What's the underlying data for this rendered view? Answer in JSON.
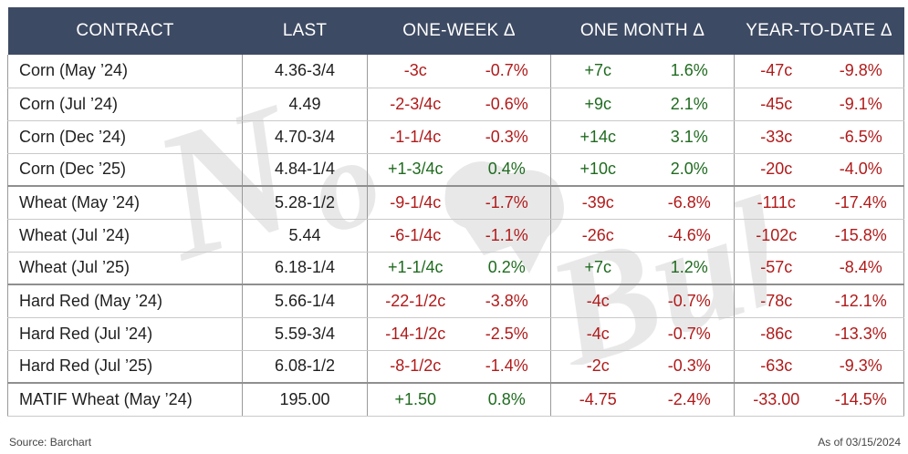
{
  "headers": [
    "CONTRACT",
    "LAST",
    "ONE-WEEK Δ",
    "ONE MONTH Δ",
    "YEAR-TO-DATE Δ"
  ],
  "rows": [
    {
      "contract": "Corn (May ’24)",
      "last": "4.36-3/4",
      "wk_chg": "-3c",
      "wk_pct": "-0.7%",
      "mo_chg": "+7c",
      "mo_pct": "1.6%",
      "ytd_chg": "-47c",
      "ytd_pct": "-9.8%"
    },
    {
      "contract": "Corn (Jul ’24)",
      "last": "4.49",
      "wk_chg": "-2-3/4c",
      "wk_pct": "-0.6%",
      "mo_chg": "+9c",
      "mo_pct": "2.1%",
      "ytd_chg": "-45c",
      "ytd_pct": "-9.1%"
    },
    {
      "contract": "Corn (Dec ’24)",
      "last": "4.70-3/4",
      "wk_chg": "-1-1/4c",
      "wk_pct": "-0.3%",
      "mo_chg": "+14c",
      "mo_pct": "3.1%",
      "ytd_chg": "-33c",
      "ytd_pct": "-6.5%"
    },
    {
      "contract": "Corn (Dec ’25)",
      "last": "4.84-1/4",
      "wk_chg": "+1-3/4c",
      "wk_pct": "0.4%",
      "mo_chg": "+10c",
      "mo_pct": "2.0%",
      "ytd_chg": "-20c",
      "ytd_pct": "-4.0%"
    },
    {
      "contract": "Wheat (May ’24)",
      "last": "5.28-1/2",
      "wk_chg": "-9-1/4c",
      "wk_pct": "-1.7%",
      "mo_chg": "-39c",
      "mo_pct": "-6.8%",
      "ytd_chg": "-111c",
      "ytd_pct": "-17.4%"
    },
    {
      "contract": "Wheat (Jul ’24)",
      "last": "5.44",
      "wk_chg": "-6-1/4c",
      "wk_pct": "-1.1%",
      "mo_chg": "-26c",
      "mo_pct": "-4.6%",
      "ytd_chg": "-102c",
      "ytd_pct": "-15.8%"
    },
    {
      "contract": "Wheat (Jul ’25)",
      "last": "6.18-1/4",
      "wk_chg": "+1-1/4c",
      "wk_pct": "0.2%",
      "mo_chg": "+7c",
      "mo_pct": "1.2%",
      "ytd_chg": "-57c",
      "ytd_pct": "-8.4%"
    },
    {
      "contract": "Hard Red (May ’24)",
      "last": "5.66-1/4",
      "wk_chg": "-22-1/2c",
      "wk_pct": "-3.8%",
      "mo_chg": "-4c",
      "mo_pct": "-0.7%",
      "ytd_chg": "-78c",
      "ytd_pct": "-12.1%"
    },
    {
      "contract": "Hard Red (Jul ’24)",
      "last": "5.59-3/4",
      "wk_chg": "-14-1/2c",
      "wk_pct": "-2.5%",
      "mo_chg": "-4c",
      "mo_pct": "-0.7%",
      "ytd_chg": "-86c",
      "ytd_pct": "-13.3%"
    },
    {
      "contract": "Hard Red (Jul ’25)",
      "last": "6.08-1/2",
      "wk_chg": "-8-1/2c",
      "wk_pct": "-1.4%",
      "mo_chg": "-2c",
      "mo_pct": "-0.3%",
      "ytd_chg": "-63c",
      "ytd_pct": "-9.3%"
    },
    {
      "contract": "MATIF Wheat (May ’24)",
      "last": "195.00",
      "wk_chg": "+1.50",
      "wk_pct": "0.8%",
      "mo_chg": "-4.75",
      "mo_pct": "-2.4%",
      "ytd_chg": "-33.00",
      "ytd_pct": "-14.5%"
    }
  ],
  "footer": {
    "source": "Source: Barchart",
    "asof": "As of 03/15/2024"
  },
  "colors": {
    "header_bg": "#3d4a63",
    "negative": "#b11a1a",
    "positive": "#1f6b1f"
  },
  "watermark_text": "No Bull"
}
